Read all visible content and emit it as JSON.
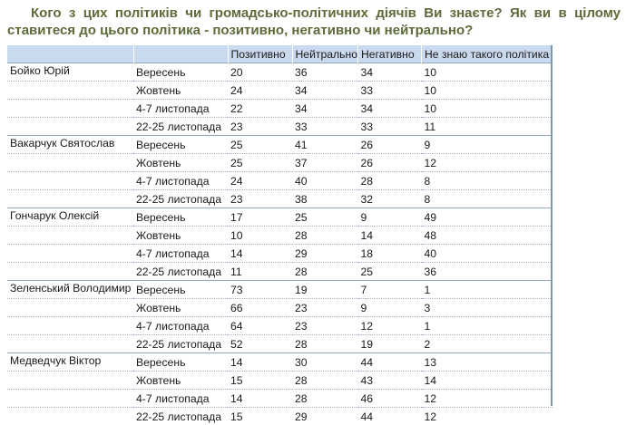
{
  "question": {
    "line1": "Кого з цих політиків чи громадсько-політичних діячів Ви знаєте? Як ви в цілому",
    "line2": "ставитеся до цього політика - позитивно, негативно чи нейтрально?"
  },
  "table": {
    "headers": [
      "",
      "",
      "Позитивно",
      "Нейтрально",
      "Негативно",
      "Не знаю такого політика"
    ],
    "groups": [
      {
        "name": "Бойко Юрій",
        "rows": [
          {
            "period": "Вересень",
            "positive": "20",
            "neutral": "36",
            "negative": "34",
            "unknown": "10"
          },
          {
            "period": "Жовтень",
            "positive": "24",
            "neutral": "34",
            "negative": "33",
            "unknown": "10"
          },
          {
            "period": "4-7 листопада",
            "positive": "22",
            "neutral": "34",
            "negative": "34",
            "unknown": "10"
          },
          {
            "period": "22-25 листопада",
            "positive": "23",
            "neutral": "33",
            "negative": "33",
            "unknown": "11"
          }
        ]
      },
      {
        "name": "Вакарчук Святослав",
        "rows": [
          {
            "period": "Вересень",
            "positive": "25",
            "neutral": "41",
            "negative": "26",
            "unknown": "9"
          },
          {
            "period": "Жовтень",
            "positive": "25",
            "neutral": "37",
            "negative": "26",
            "unknown": "12"
          },
          {
            "period": "4-7 листопада",
            "positive": "24",
            "neutral": "40",
            "negative": "28",
            "unknown": "8"
          },
          {
            "period": "22-25 листопада",
            "positive": "23",
            "neutral": "38",
            "negative": "32",
            "unknown": "8"
          }
        ]
      },
      {
        "name": "Гончарук Олексій",
        "rows": [
          {
            "period": "Вересень",
            "positive": "17",
            "neutral": "25",
            "negative": "9",
            "unknown": "49"
          },
          {
            "period": "Жовтень",
            "positive": "10",
            "neutral": "28",
            "negative": "14",
            "unknown": "48"
          },
          {
            "period": "4-7 листопада",
            "positive": "14",
            "neutral": "29",
            "negative": "18",
            "unknown": "40"
          },
          {
            "period": "22-25 листопада",
            "positive": "11",
            "neutral": "28",
            "negative": "25",
            "unknown": "36"
          }
        ]
      },
      {
        "name": "Зеленський Володимир",
        "rows": [
          {
            "period": "Вересень",
            "positive": "73",
            "neutral": "19",
            "negative": "7",
            "unknown": "1"
          },
          {
            "period": "Жовтень",
            "positive": "66",
            "neutral": "23",
            "negative": "9",
            "unknown": "3"
          },
          {
            "period": "4-7 листопада",
            "positive": "64",
            "neutral": "23",
            "negative": "12",
            "unknown": "1"
          },
          {
            "period": "22-25 листопада",
            "positive": "52",
            "neutral": "28",
            "negative": "19",
            "unknown": "2"
          }
        ]
      },
      {
        "name": "Медведчук Віктор",
        "rows": [
          {
            "period": "Вересень",
            "positive": "14",
            "neutral": "30",
            "negative": "44",
            "unknown": "13"
          },
          {
            "period": "Жовтень",
            "positive": "15",
            "neutral": "28",
            "negative": "43",
            "unknown": "14"
          },
          {
            "period": "4-7 листопада",
            "positive": "14",
            "neutral": "28",
            "negative": "46",
            "unknown": "12"
          },
          {
            "period": "22-25 листопада",
            "positive": "15",
            "neutral": "29",
            "negative": "44",
            "unknown": "12"
          }
        ]
      }
    ]
  },
  "colors": {
    "question_text": "#5d6a3a",
    "header_bg": "#c9d9ee"
  }
}
